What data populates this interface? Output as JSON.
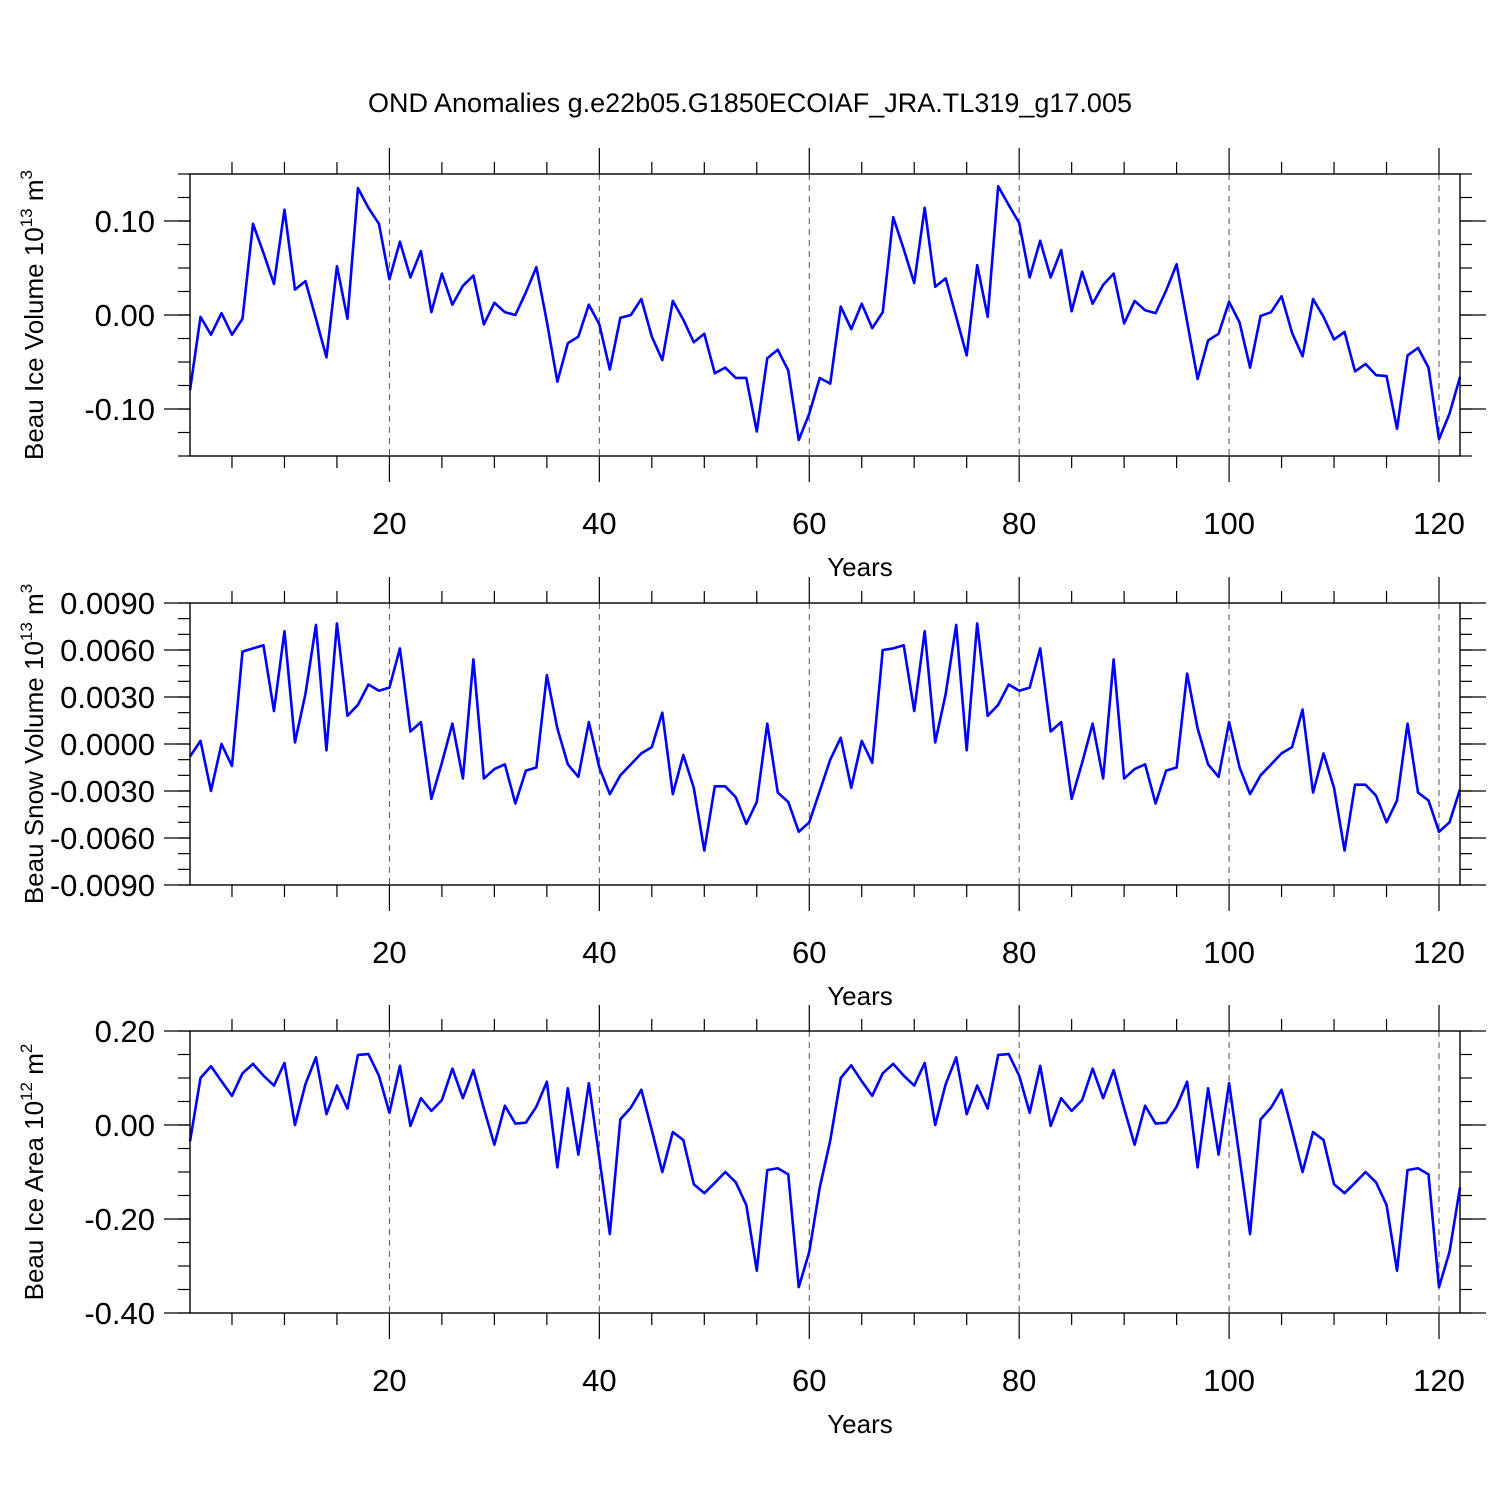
{
  "figure_title": "OND Anomalies g.e22b05.G1850ECOIAF_JRA.TL319_g17.005",
  "colors": {
    "line": "#0000ff",
    "frame": "#000000",
    "grid": "#555555"
  },
  "chart_data": [
    {
      "type": "line",
      "name": "ice-volume",
      "ylabel_main": "Beau Ice Volume 10",
      "ylabel_exp": "13",
      "ylabel_unit": " m",
      "ylabel_unit_exp": "3",
      "xlabel": "Years",
      "xlim": [
        1,
        122
      ],
      "ylim": [
        -0.15,
        0.15
      ],
      "x_ticks": [
        20,
        40,
        60,
        80,
        100,
        120
      ],
      "x_tick_labels": [
        "20",
        "40",
        "60",
        "80",
        "100",
        "120"
      ],
      "y_ticks": [
        -0.1,
        0.0,
        0.1
      ],
      "y_tick_labels": [
        "-0.10",
        "0.00",
        "0.10"
      ],
      "y_minor_step": 0.025,
      "grid": "x-dashed",
      "x_start": 1,
      "values": [
        -0.08,
        -0.002,
        -0.021,
        0.002,
        -0.021,
        -0.004,
        0.097,
        0.066,
        0.033,
        0.112,
        0.027,
        0.036,
        -0.004,
        -0.045,
        0.052,
        -0.004,
        0.135,
        0.114,
        0.097,
        0.038,
        0.078,
        0.04,
        0.068,
        0.003,
        0.044,
        0.011,
        0.031,
        0.042,
        -0.01,
        0.013,
        0.003,
        0.0,
        0.024,
        0.051,
        -0.007,
        -0.071,
        -0.03,
        -0.023,
        0.011,
        -0.01,
        -0.058,
        -0.003,
        0.0,
        0.017,
        -0.023,
        -0.048,
        0.015,
        -0.005,
        -0.029,
        -0.02,
        -0.062,
        -0.056,
        -0.067,
        -0.067,
        -0.124,
        -0.046,
        -0.037,
        -0.059,
        -0.133,
        -0.105,
        -0.067,
        -0.073,
        0.009,
        -0.015,
        0.012,
        -0.014,
        0.003,
        0.104,
        0.07,
        0.034,
        0.114,
        0.03,
        0.039,
        -0.002,
        -0.043,
        0.053,
        -0.002,
        0.137,
        0.117,
        0.098,
        0.04,
        0.079,
        0.04,
        0.069,
        0.004,
        0.046,
        0.012,
        0.032,
        0.044,
        -0.009,
        0.015,
        0.005,
        0.002,
        0.026,
        0.054,
        -0.007,
        -0.068,
        -0.027,
        -0.02,
        0.014,
        -0.008,
        -0.056,
        -0.001,
        0.003,
        0.02,
        -0.019,
        -0.044,
        0.017,
        -0.002,
        -0.026,
        -0.018,
        -0.06,
        -0.052,
        -0.064,
        -0.065,
        -0.121,
        -0.043,
        -0.035,
        -0.056,
        -0.132,
        -0.105,
        -0.066
      ]
    },
    {
      "type": "line",
      "name": "snow-volume",
      "ylabel_main": "Beau Snow Volume 10",
      "ylabel_exp": "13",
      "ylabel_unit": " m",
      "ylabel_unit_exp": "3",
      "xlabel": "Years",
      "xlim": [
        1,
        122
      ],
      "ylim": [
        -0.009,
        0.009
      ],
      "x_ticks": [
        20,
        40,
        60,
        80,
        100,
        120
      ],
      "x_tick_labels": [
        "20",
        "40",
        "60",
        "80",
        "100",
        "120"
      ],
      "y_ticks": [
        -0.009,
        -0.006,
        -0.003,
        0.0,
        0.003,
        0.006,
        0.009
      ],
      "y_tick_labels": [
        "-0.0090",
        "-0.0060",
        "-0.0030",
        "0.0000",
        "0.0030",
        "0.0060",
        "0.0090"
      ],
      "y_minor_step": 0.001,
      "grid": "x-dashed",
      "x_start": 1,
      "values": [
        -0.0008,
        0.0002,
        -0.003,
        0.0,
        -0.0014,
        0.0059,
        0.0061,
        0.0063,
        0.0021,
        0.0072,
        0.0001,
        0.0032,
        0.0076,
        -0.0004,
        0.0077,
        0.0018,
        0.0025,
        0.0038,
        0.0034,
        0.0036,
        0.0061,
        0.0008,
        0.0014,
        -0.0035,
        -0.0012,
        0.0013,
        -0.0022,
        0.0054,
        -0.0022,
        -0.0016,
        -0.0013,
        -0.0038,
        -0.0017,
        -0.0015,
        0.0044,
        0.001,
        -0.0013,
        -0.0021,
        0.0014,
        -0.0015,
        -0.0032,
        -0.002,
        -0.0013,
        -0.0006,
        -0.0002,
        0.002,
        -0.0032,
        -0.0007,
        -0.0028,
        -0.0068,
        -0.0027,
        -0.0027,
        -0.0034,
        -0.0051,
        -0.0037,
        0.0013,
        -0.0031,
        -0.0037,
        -0.0056,
        -0.005,
        -0.003,
        -0.001,
        0.0004,
        -0.0028,
        0.0002,
        -0.0012,
        0.006,
        0.0061,
        0.0063,
        0.0021,
        0.0072,
        0.0001,
        0.0032,
        0.0076,
        -0.0004,
        0.0077,
        0.0018,
        0.0025,
        0.0038,
        0.0034,
        0.0036,
        0.0061,
        0.0008,
        0.0014,
        -0.0035,
        -0.0012,
        0.0013,
        -0.0022,
        0.0054,
        -0.0022,
        -0.0016,
        -0.0013,
        -0.0038,
        -0.0017,
        -0.0015,
        0.0045,
        0.001,
        -0.0013,
        -0.0021,
        0.0014,
        -0.0015,
        -0.0032,
        -0.002,
        -0.0013,
        -0.0006,
        -0.0002,
        0.0022,
        -0.0031,
        -0.0006,
        -0.0028,
        -0.0068,
        -0.0026,
        -0.0026,
        -0.0033,
        -0.005,
        -0.0036,
        0.0013,
        -0.0031,
        -0.0036,
        -0.0056,
        -0.005,
        -0.0029
      ]
    },
    {
      "type": "line",
      "name": "ice-area",
      "ylabel_main": "Beau Ice Area 10",
      "ylabel_exp": "12",
      "ylabel_unit": " m",
      "ylabel_unit_exp": "2",
      "xlabel": "Years",
      "xlim": [
        1,
        122
      ],
      "ylim": [
        -0.4,
        0.2
      ],
      "x_ticks": [
        20,
        40,
        60,
        80,
        100,
        120
      ],
      "x_tick_labels": [
        "20",
        "40",
        "60",
        "80",
        "100",
        "120"
      ],
      "y_ticks": [
        -0.4,
        -0.2,
        0.0,
        0.2
      ],
      "y_tick_labels": [
        "-0.40",
        "-0.20",
        "0.00",
        "0.20"
      ],
      "y_minor_step": 0.05,
      "grid": "x-dashed",
      "x_start": 1,
      "values": [
        -0.035,
        0.1,
        0.125,
        0.093,
        0.062,
        0.11,
        0.13,
        0.105,
        0.084,
        0.132,
        0.0,
        0.087,
        0.144,
        0.023,
        0.084,
        0.035,
        0.149,
        0.151,
        0.105,
        0.026,
        0.126,
        -0.002,
        0.057,
        0.03,
        0.053,
        0.12,
        0.057,
        0.117,
        0.035,
        -0.042,
        0.041,
        0.003,
        0.005,
        0.039,
        0.092,
        -0.09,
        0.078,
        -0.063,
        0.089,
        -0.07,
        -0.232,
        0.012,
        0.037,
        0.075,
        -0.011,
        -0.1,
        -0.015,
        -0.032,
        -0.126,
        -0.145,
        -0.123,
        -0.1,
        -0.122,
        -0.17,
        -0.31,
        -0.096,
        -0.092,
        -0.105,
        -0.345,
        -0.27,
        -0.133,
        -0.033,
        0.1,
        0.127,
        0.093,
        0.062,
        0.11,
        0.13,
        0.105,
        0.084,
        0.132,
        0.0,
        0.087,
        0.144,
        0.023,
        0.084,
        0.035,
        0.149,
        0.151,
        0.105,
        0.026,
        0.126,
        -0.002,
        0.057,
        0.03,
        0.053,
        0.12,
        0.057,
        0.117,
        0.035,
        -0.042,
        0.041,
        0.003,
        0.005,
        0.039,
        0.092,
        -0.09,
        0.078,
        -0.063,
        0.089,
        -0.07,
        -0.232,
        0.012,
        0.037,
        0.075,
        -0.011,
        -0.1,
        -0.015,
        -0.032,
        -0.126,
        -0.145,
        -0.123,
        -0.1,
        -0.122,
        -0.17,
        -0.31,
        -0.096,
        -0.092,
        -0.105,
        -0.345,
        -0.27,
        -0.133
      ]
    }
  ]
}
